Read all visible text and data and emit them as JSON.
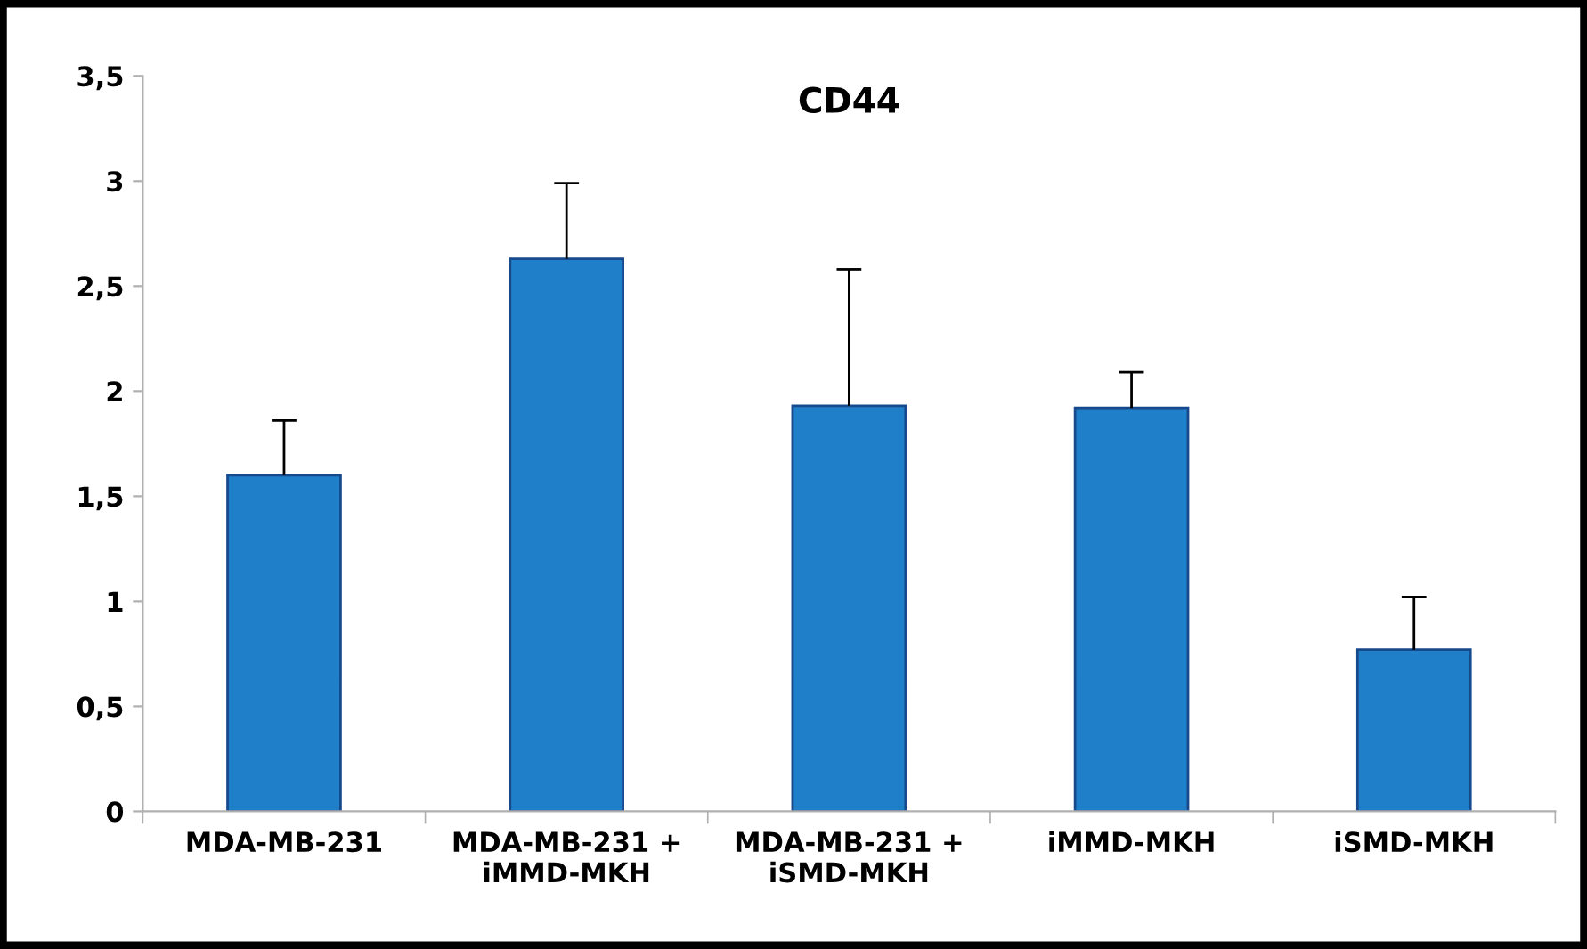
{
  "chart_data": {
    "type": "bar",
    "title": "CD44",
    "categories": [
      "MDA-MB-231",
      "MDA-MB-231 +\niMMD-MKH",
      "MDA-MB-231 +\niSMD-MKH",
      "iMMD-MKH",
      "iSMD-MKH"
    ],
    "values": [
      1.6,
      2.63,
      1.93,
      1.92,
      0.77
    ],
    "errors": [
      [
        1.6,
        1.86
      ],
      [
        2.63,
        2.99
      ],
      [
        1.93,
        2.58
      ],
      [
        1.92,
        2.09
      ],
      [
        0.77,
        1.02
      ]
    ],
    "color": "#1f7fc8",
    "ylim": [
      0,
      3.5
    ],
    "yticks": [
      0,
      {
        "value": 0.5,
        "label": "0,5"
      },
      1,
      {
        "value": 1.5,
        "label": "1,5"
      },
      2,
      {
        "value": 2.5,
        "label": "2,5"
      },
      3,
      {
        "value": 3.5,
        "label": "3,5"
      }
    ],
    "grid": false
  }
}
